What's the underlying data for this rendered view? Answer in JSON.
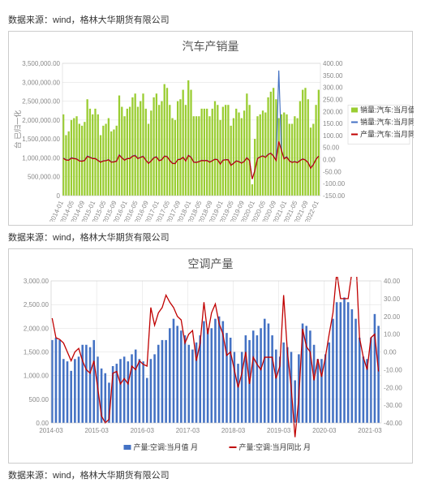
{
  "sources": [
    "数据来源：wind，格林大华期货有限公司",
    "数据来源：wind，格林大华期货有限公司",
    "数据来源：wind，格林大华期货有限公司"
  ],
  "chart1": {
    "type": "bar+line",
    "title": "汽车产销量",
    "title_fontsize": 14,
    "background_color": "#ffffff",
    "grid_color": "#dddddd",
    "y_left": {
      "min": 0,
      "max": 3500000,
      "ticks": [
        0,
        500000,
        1000000,
        1500000,
        2000000,
        2500000,
        3000000,
        3500000
      ],
      "tick_labels": [
        "0",
        "500,000.00",
        "1,000,000.00",
        "1,500,000.00",
        "2,000,000.00",
        "2,500,000.00",
        "3,000,000.00",
        "3,500,000.00"
      ],
      "label": "台  已归一化"
    },
    "y_right": {
      "min": -150,
      "max": 400,
      "ticks": [
        -150,
        -100,
        -50,
        0,
        50,
        100,
        150,
        200,
        250,
        300,
        350,
        400
      ],
      "tick_labels": [
        "-150.00",
        "-100.00",
        "-50.00",
        "0.00",
        "50.00",
        "100.00",
        "150.00",
        "200.00",
        "250.00",
        "300.00",
        "350.00",
        "400.00"
      ]
    },
    "x_labels": [
      "2014-01",
      "2014-05",
      "2014-09",
      "2015-01",
      "2015-05",
      "2015-09",
      "2016-01",
      "2016-05",
      "2016-09",
      "2017-01",
      "2017-05",
      "2017-09",
      "2018-01",
      "2018-05",
      "2018-09",
      "2019-01",
      "2019-05",
      "2019-09",
      "2020-01",
      "2020-05",
      "2020-09",
      "2021-01",
      "2021-05",
      "2021-09",
      "2022-01"
    ],
    "sales_bars": [
      2150000,
      1600000,
      1700000,
      2000000,
      2050000,
      2100000,
      1900000,
      1850000,
      1950000,
      2550000,
      2300000,
      2150000,
      2300000,
      2150000,
      1600000,
      1850000,
      1900000,
      2050000,
      1700000,
      1750000,
      1850000,
      2650000,
      2350000,
      2100000,
      2300000,
      2350000,
      2600000,
      2700000,
      2350000,
      2500000,
      2700000,
      2300000,
      1900000,
      2250000,
      2600000,
      2700000,
      2400000,
      2500000,
      2950000,
      2850000,
      2400000,
      2050000,
      2000000,
      2500000,
      2550000,
      2800000,
      2400000,
      3050000,
      2800000,
      2100000,
      2100000,
      2100000,
      2300000,
      2300000,
      2300000,
      2100000,
      2300000,
      2500000,
      2400000,
      2000000,
      2350000,
      2400000,
      2400000,
      1850000,
      2050000,
      2300000,
      2200000,
      2050000,
      2250000,
      2700000,
      2400000,
      300000,
      1500000,
      2100000,
      2150000,
      2250000,
      2200000,
      2600000,
      2750000,
      2850000,
      2550000,
      2050000,
      2150000,
      2200000,
      2150000,
      1900000,
      1900000,
      2100000,
      2050000,
      2500000,
      2800000,
      2850000,
      2550000,
      1800000,
      1900000,
      2400000,
      2800000
    ],
    "yoy_blue": [
      7,
      -1,
      -2,
      8,
      5,
      3,
      -5,
      -6,
      -3,
      15,
      10,
      5,
      5,
      -3,
      -10,
      -5,
      -4,
      0,
      -10,
      -9,
      -6,
      20,
      8,
      -2,
      5,
      5,
      15,
      18,
      5,
      10,
      14,
      -2,
      -15,
      -5,
      8,
      12,
      -4,
      0,
      15,
      13,
      -3,
      -15,
      -16,
      0,
      2,
      10,
      -5,
      18,
      10,
      -10,
      -11,
      -8,
      -3,
      -4,
      -3,
      -10,
      -4,
      2,
      0,
      -18,
      -2,
      0,
      0,
      -23,
      -15,
      -5,
      -8,
      -14,
      -7,
      8,
      -4,
      -80,
      -45,
      5,
      12,
      16,
      10,
      22,
      27,
      15,
      -3,
      370,
      40,
      5,
      12,
      -5,
      -11,
      -8,
      -12,
      -3,
      3,
      -1,
      -12,
      -35,
      -20,
      2,
      15
    ],
    "yoy_red": [
      5,
      -2,
      -3,
      6,
      4,
      2,
      -6,
      -7,
      -4,
      13,
      9,
      4,
      4,
      -4,
      -11,
      -6,
      -5,
      -1,
      -11,
      -10,
      -7,
      18,
      7,
      -3,
      4,
      4,
      14,
      16,
      4,
      9,
      13,
      -3,
      -16,
      -6,
      7,
      11,
      -5,
      -1,
      14,
      12,
      -4,
      -16,
      -17,
      -1,
      1,
      9,
      -6,
      17,
      9,
      -11,
      -12,
      -9,
      -4,
      -5,
      -4,
      -11,
      -5,
      1,
      -1,
      -19,
      -3,
      -1,
      -1,
      -24,
      -16,
      -6,
      -9,
      -15,
      -8,
      7,
      -5,
      -81,
      -46,
      4,
      11,
      15,
      9,
      21,
      26,
      14,
      -4,
      75,
      38,
      3,
      10,
      -6,
      -12,
      -9,
      -13,
      -4,
      2,
      -2,
      -13,
      -36,
      -21,
      1,
      14
    ],
    "bar_color": "#9acd32",
    "line_blue_color": "#4472c4",
    "line_red_color": "#c00000",
    "legend": [
      {
        "label": "销量:汽车:当月值 月",
        "color": "#9acd32",
        "shape": "rect"
      },
      {
        "label": "销量:汽车:当月同比 月",
        "color": "#4472c4",
        "shape": "line"
      },
      {
        "label": "产量:汽车:当月同比 月",
        "color": "#c00000",
        "shape": "line"
      }
    ]
  },
  "chart2": {
    "type": "bar+line",
    "title": "空调产量",
    "title_fontsize": 14,
    "background_color": "#ffffff",
    "grid_color": "#dddddd",
    "y_left": {
      "min": 0,
      "max": 3000,
      "ticks": [
        0,
        500,
        1000,
        1500,
        2000,
        2500,
        3000
      ],
      "tick_labels": [
        "0.00",
        "500.00",
        "1,000.00",
        "1,500.00",
        "2,000.00",
        "2,500.00",
        "3,000.00"
      ]
    },
    "y_right": {
      "min": -40,
      "max": 40,
      "ticks": [
        -40,
        -30,
        -20,
        -10,
        0,
        10,
        20,
        30,
        40
      ],
      "tick_labels": [
        "-40.00",
        "-30.00",
        "-20.00",
        "-10.00",
        "0.00",
        "10.00",
        "20.00",
        "30.00",
        "40.00"
      ]
    },
    "x_labels": [
      "2014-03",
      "2015-03",
      "2016-03",
      "2017-03",
      "2018-03",
      "2019-03",
      "2020-03",
      "2021-03"
    ],
    "n_per_label": 12,
    "bars": [
      1750,
      1800,
      1750,
      1350,
      1300,
      1100,
      1350,
      1400,
      1650,
      1650,
      1600,
      1750,
      1400,
      1150,
      1050,
      850,
      1200,
      1250,
      1350,
      1400,
      1300,
      1450,
      1550,
      1350,
      1300,
      950,
      1350,
      1450,
      1650,
      1750,
      1750,
      2000,
      2200,
      2050,
      1950,
      1850,
      1650,
      1550,
      1700,
      1850,
      2150,
      2000,
      2000,
      2200,
      2250,
      2150,
      1900,
      1800,
      1500,
      1250,
      1500,
      1850,
      1750,
      1950,
      1850,
      2000,
      2200,
      2100,
      1850,
      1550,
      1400,
      1700,
      1600,
      1500,
      900,
      1450,
      2100,
      2050,
      1950,
      1650,
      1350,
      1350,
      1450,
      1700,
      2200,
      2550,
      2550,
      2650,
      2550,
      2400,
      2200,
      1800,
      1400,
      1350,
      1800,
      2300,
      2050
    ],
    "yoy": [
      19,
      8,
      7,
      5,
      0,
      -5,
      0,
      2,
      -5,
      -10,
      -12,
      -5,
      -20,
      -36,
      -40,
      -38,
      -12,
      -11,
      -18,
      -15,
      -18,
      -8,
      -10,
      -5,
      -7,
      -8,
      25,
      15,
      22,
      25,
      32,
      28,
      25,
      20,
      18,
      5,
      10,
      12,
      -5,
      5,
      28,
      10,
      22,
      27,
      16,
      10,
      -2,
      0,
      -10,
      -20,
      -12,
      0,
      -18,
      -3,
      -7,
      -10,
      -3,
      -3,
      -3,
      -15,
      -8,
      32,
      0,
      -20,
      -48,
      -26,
      13,
      3,
      0,
      -16,
      -4,
      -14,
      -3,
      10,
      22,
      45,
      30,
      30,
      30,
      45,
      55,
      8,
      -3,
      -10,
      8,
      10,
      -11
    ],
    "bar_color": "#4472c4",
    "line_color": "#c00000",
    "legend": [
      {
        "label": "产量:空调:当月值 月",
        "color": "#4472c4",
        "shape": "rect"
      },
      {
        "label": "产量:空调:当月同比 月",
        "color": "#c00000",
        "shape": "line"
      }
    ]
  }
}
